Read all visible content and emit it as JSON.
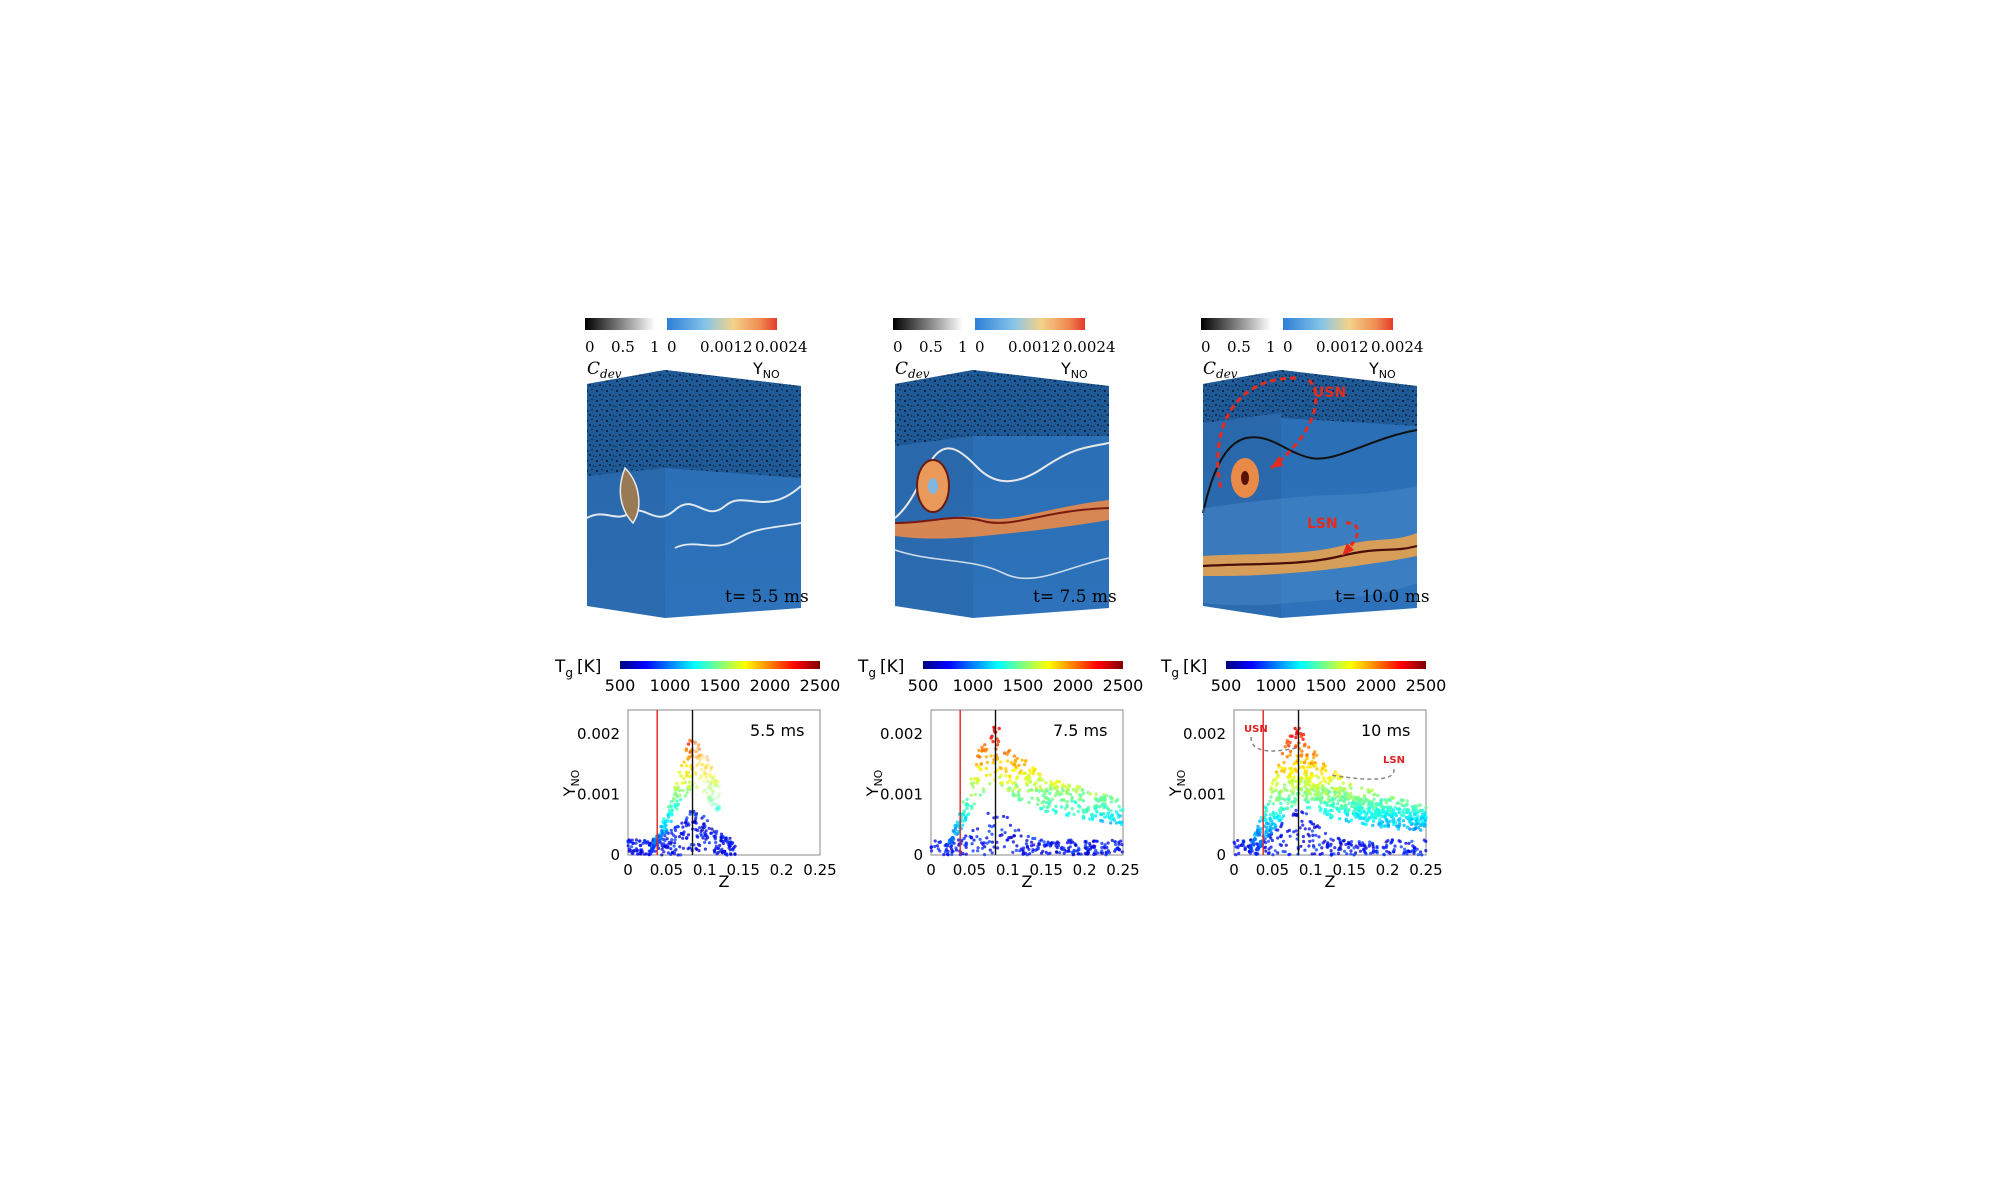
{
  "colorbars": {
    "cdev": {
      "title_main": "C",
      "title_sub": "dev",
      "ticks": [
        "0",
        "0.5",
        "1"
      ]
    },
    "yno": {
      "title_main": "Y",
      "title_sub": "NO",
      "ticks": [
        "0",
        "0.0012",
        "0.0024"
      ]
    },
    "tg": {
      "title_main": "T",
      "title_sub": "g",
      "title_unit": "[K]",
      "ticks": [
        "500",
        "1000",
        "1500",
        "2000",
        "2500"
      ]
    }
  },
  "snapshots": [
    {
      "time_label": "t= 5.5 ms",
      "annotations": []
    },
    {
      "time_label": "t= 7.5 ms",
      "annotations": []
    },
    {
      "time_label": "t= 10.0 ms",
      "annotations": [
        "USN",
        "LSN"
      ]
    }
  ],
  "chart_data": [
    {
      "type": "scatter",
      "time_label": "5.5 ms",
      "xlabel": "Z",
      "ylabel_main": "Y",
      "ylabel_sub": "NO",
      "xlim": [
        0,
        0.25
      ],
      "ylim": [
        0,
        0.0024
      ],
      "xticks": [
        "0",
        "0.05",
        "0.1",
        "0.15",
        "0.2",
        "0.25"
      ],
      "yticks": [
        "0",
        "0.001",
        "0.002"
      ],
      "reference_lines": [
        {
          "x": 0.038,
          "color": "#e02020"
        },
        {
          "x": 0.084,
          "color": "#111111"
        }
      ],
      "ridges": [
        {
          "x": [
            0.03,
            0.05,
            0.07,
            0.084,
            0.1,
            0.12
          ],
          "y": [
            0.0001,
            0.0007,
            0.0015,
            0.0021,
            0.0017,
            0.0012
          ]
        }
      ],
      "annotations": []
    },
    {
      "type": "scatter",
      "time_label": "7.5 ms",
      "xlabel": "Z",
      "ylabel_main": "Y",
      "ylabel_sub": "NO",
      "xlim": [
        0,
        0.25
      ],
      "ylim": [
        0,
        0.0024
      ],
      "xticks": [
        "0",
        "0.05",
        "0.1",
        "0.15",
        "0.2",
        "0.25"
      ],
      "yticks": [
        "0",
        "0.001",
        "0.002"
      ],
      "reference_lines": [
        {
          "x": 0.038,
          "color": "#e02020"
        },
        {
          "x": 0.084,
          "color": "#111111"
        }
      ],
      "ridges": [
        {
          "x": [
            0.02,
            0.04,
            0.06,
            0.084,
            0.11,
            0.15,
            0.2,
            0.25
          ],
          "y": [
            0.0001,
            0.0008,
            0.0017,
            0.0022,
            0.0017,
            0.0013,
            0.0011,
            0.0009
          ]
        }
      ],
      "annotations": []
    },
    {
      "type": "scatter",
      "time_label": "10 ms",
      "xlabel": "Z",
      "ylabel_main": "Y",
      "ylabel_sub": "NO",
      "xlim": [
        0,
        0.25
      ],
      "ylim": [
        0,
        0.0024
      ],
      "xticks": [
        "0",
        "0.05",
        "0.1",
        "0.15",
        "0.2",
        "0.25"
      ],
      "yticks": [
        "0",
        "0.001",
        "0.002"
      ],
      "reference_lines": [
        {
          "x": 0.038,
          "color": "#e02020"
        },
        {
          "x": 0.084,
          "color": "#111111"
        }
      ],
      "ridges": [
        {
          "x": [
            0.02,
            0.04,
            0.06,
            0.084,
            0.11,
            0.15,
            0.2,
            0.25
          ],
          "y": [
            0.0001,
            0.0008,
            0.0017,
            0.0022,
            0.0016,
            0.0012,
            0.001,
            0.0008
          ]
        },
        {
          "x": [
            0.03,
            0.05,
            0.07,
            0.084,
            0.11,
            0.15,
            0.2,
            0.25
          ],
          "y": [
            0.0001,
            0.0007,
            0.0013,
            0.0016,
            0.0012,
            0.001,
            0.0008,
            0.0007
          ]
        }
      ],
      "annotations": [
        "USN",
        "LSN"
      ]
    }
  ]
}
